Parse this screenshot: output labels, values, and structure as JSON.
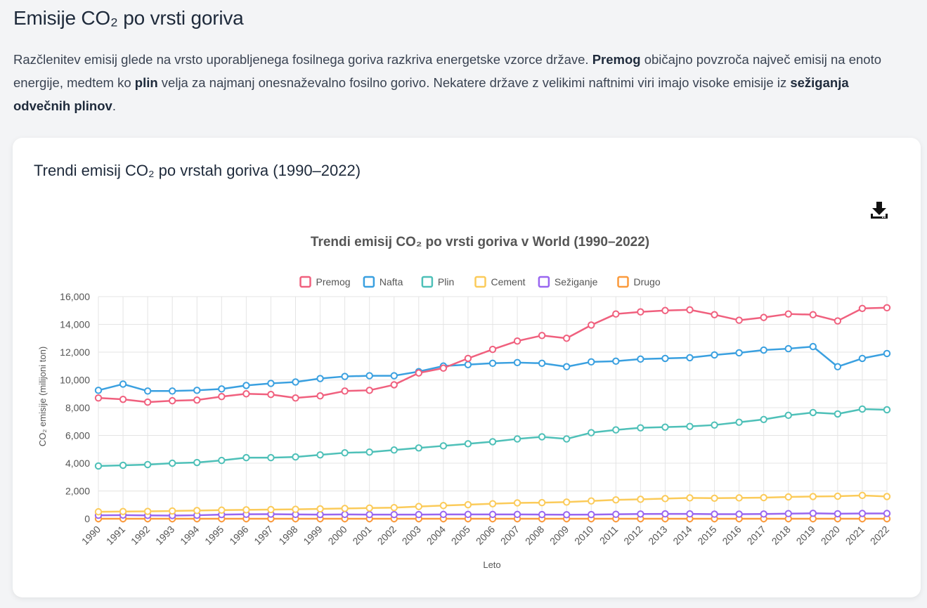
{
  "page": {
    "title": "Emisije CO₂ po vrsti goriva",
    "intro": {
      "p1": "Razčlenitev emisij glede na vrsto uporabljenega fosilnega goriva razkriva energetske vzorce države. ",
      "b1": "Premog",
      "p2": " običajno povzroča največ emisij na enoto energije, medtem ko ",
      "b2": "plin",
      "p3": " velja za najmanj onesnaževalno fosilno gorivo. Nekatere države z velikimi naftnimi viri imajo visoke emisije iz ",
      "b3": "sežiganja odvečnih plinov",
      "p4": "."
    }
  },
  "card": {
    "title": "Trendi emisij CO₂ po vrstah goriva (1990–2022)",
    "download_icon": "download-icon"
  },
  "chart_data": {
    "type": "line",
    "title": "Trendi emisij CO₂ po vrsti goriva v World (1990–2022)",
    "xlabel": "Leto",
    "ylabel": "CO₂ emisije (milijoni ton)",
    "ylim": [
      0,
      16000
    ],
    "yticks": [
      "0",
      "2,000",
      "4,000",
      "6,000",
      "8,000",
      "10,000",
      "12,000",
      "14,000",
      "16,000"
    ],
    "grid": true,
    "legend_position": "top",
    "x": [
      "1990",
      "1991",
      "1992",
      "1993",
      "1994",
      "1995",
      "1996",
      "1997",
      "1998",
      "1999",
      "2000",
      "2001",
      "2002",
      "2003",
      "2004",
      "2005",
      "2006",
      "2007",
      "2008",
      "2009",
      "2010",
      "2011",
      "2012",
      "2013",
      "2014",
      "2015",
      "2016",
      "2017",
      "2018",
      "2019",
      "2020",
      "2021",
      "2022"
    ],
    "series": [
      {
        "name": "Premog",
        "color": "#f0607e",
        "values": [
          8700,
          8600,
          8400,
          8500,
          8550,
          8800,
          9000,
          8950,
          8700,
          8850,
          9200,
          9250,
          9650,
          10500,
          10850,
          11550,
          12200,
          12800,
          13200,
          13000,
          13950,
          14750,
          14900,
          15000,
          15050,
          14700,
          14300,
          14500,
          14750,
          14700,
          14250,
          15150,
          15200
        ]
      },
      {
        "name": "Nafta",
        "color": "#3aa0e0",
        "values": [
          9250,
          9700,
          9200,
          9200,
          9250,
          9350,
          9600,
          9750,
          9850,
          10100,
          10250,
          10300,
          10300,
          10600,
          11000,
          11100,
          11200,
          11250,
          11200,
          10950,
          11300,
          11350,
          11500,
          11550,
          11600,
          11800,
          11950,
          12150,
          12250,
          12400,
          10950,
          11550,
          11900
        ]
      },
      {
        "name": "Plin",
        "color": "#4ec0b8",
        "values": [
          3800,
          3850,
          3900,
          4000,
          4050,
          4200,
          4400,
          4400,
          4450,
          4600,
          4750,
          4800,
          4950,
          5100,
          5250,
          5400,
          5550,
          5750,
          5900,
          5750,
          6200,
          6400,
          6550,
          6600,
          6650,
          6750,
          6950,
          7150,
          7450,
          7650,
          7550,
          7900,
          7850
        ]
      },
      {
        "name": "Cement",
        "color": "#fbcb5a",
        "values": [
          500,
          520,
          530,
          560,
          590,
          620,
          640,
          660,
          680,
          710,
          740,
          770,
          800,
          880,
          950,
          1010,
          1080,
          1140,
          1160,
          1200,
          1280,
          1360,
          1400,
          1450,
          1500,
          1480,
          1500,
          1520,
          1570,
          1600,
          1620,
          1680,
          1600
        ]
      },
      {
        "name": "Sežiganje",
        "color": "#9966f0",
        "values": [
          250,
          260,
          240,
          230,
          250,
          300,
          320,
          330,
          310,
          300,
          310,
          300,
          300,
          300,
          310,
          310,
          310,
          310,
          300,
          290,
          300,
          320,
          340,
          350,
          350,
          330,
          330,
          340,
          370,
          390,
          360,
          380,
          380
        ]
      },
      {
        "name": "Drugo",
        "color": "#fb9a3c",
        "values": [
          0,
          0,
          0,
          0,
          0,
          0,
          0,
          0,
          0,
          0,
          0,
          0,
          0,
          0,
          0,
          0,
          0,
          0,
          0,
          0,
          0,
          0,
          0,
          0,
          0,
          0,
          0,
          0,
          0,
          0,
          0,
          0,
          0
        ]
      }
    ]
  }
}
